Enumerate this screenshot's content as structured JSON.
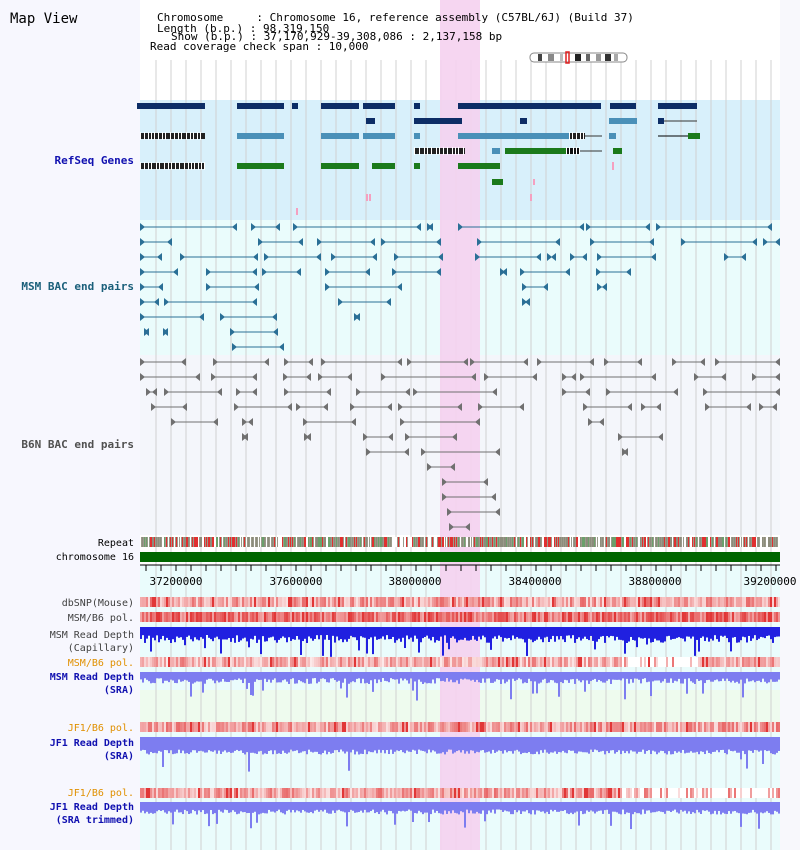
{
  "app": {
    "title": "Map View",
    "info_lines": [
      "Chromosome     : Chromosome 16, reference assembly (C57BL/6J) (Build 37)",
      "Length (b.p.) : 98,319,150",
      "Show (b.p.) : 37,170,929-39,308,086 : 2,137,158 bp",
      "Read coverage check span : 10,000"
    ]
  },
  "tracks": {
    "refseq": "RefSeq Genes",
    "msm_bac": "MSM BAC end pairs",
    "b6n_bac": "B6N BAC end pairs",
    "repeat": "Repeat",
    "chromosome": "chromosome 16",
    "dbsnp": "dbSNP(Mouse)",
    "msm_b6_pol_cap": "MSM/B6 pol.",
    "msm_depth_cap_1": "MSM Read Depth",
    "msm_depth_cap_2": "(Capillary)",
    "msm_b6_pol_sra": "MSM/B6 pol.",
    "msm_depth_sra_1": "MSM Read Depth",
    "msm_depth_sra_2": "(SRA)",
    "jf1_b6_pol": "JF1/B6 pol.",
    "jf1_depth_1": "JF1 Read Depth",
    "jf1_depth_2": "(SRA)",
    "jf1_b6_pol_trim": "JF1/B6 pol.",
    "jf1_depth_trim_1": "JF1 Read Depth",
    "jf1_depth_trim_2": "(SRA trimmed)"
  },
  "axis": {
    "ticks": [
      "37200000",
      "37600000",
      "38000000",
      "38400000",
      "38800000",
      "39200000"
    ]
  },
  "colors": {
    "highlight": "#f5d2f0",
    "refseq_bg": "#d8f0fb",
    "msm_bg": "#eafcfc",
    "b6n_bg": "#f4f6fb",
    "dark_gene": "#0d2d66",
    "mid_gene": "#4a90b8",
    "green_gene": "#1b7a1b",
    "bac_msm": "#2a6f96",
    "bac_b6n": "#707070",
    "chrom": "#006600",
    "depth_blue": "#2020e0",
    "depth_lavender": "#7d7df0",
    "snp_red": "#e04040"
  }
}
